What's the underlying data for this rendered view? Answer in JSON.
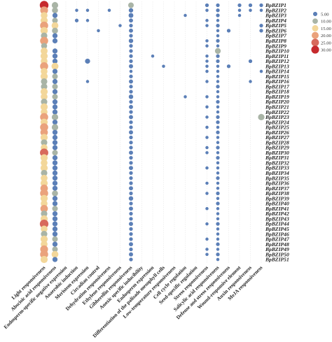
{
  "chart_data": {
    "type": "scatter",
    "title": "",
    "xlabel": "",
    "ylabel": "",
    "x_categories": [
      "Light responsiveness",
      "Abscisic acid responsiveness",
      "Endosperm-specific negative expression",
      "Anaerobic induction",
      "Meristem expression",
      "Circadian control",
      "Dehydration responsiveness",
      "Ethylene responsiveness",
      "Gibberellin responsiveness",
      "Anoxic specific inducibility",
      "Endosperm expression",
      "Differentiation of the palisade mesophyll cells",
      "Low-temperature responsiveness",
      "Cell cycle regulation",
      "Seed-specific regulation",
      "Stress responsiveness",
      "Salicylic acid responsiveness",
      "Defense and stress responsiveness",
      "Wound-responsive element",
      "Auxin responsiveness",
      "MeJA responsiveness"
    ],
    "y_categories": [
      "BpBZIP1",
      "BpBZIP2",
      "BpBZIP3",
      "BpBZIP4",
      "BpBZIP5",
      "BpBZIP6",
      "BpBZIP7",
      "BpBZIP8",
      "BpBZIP9",
      "BpBZIP10",
      "BpBZIP11",
      "BpBZIP12",
      "BpBZIP13",
      "BpBZIP14",
      "BpBZIP15",
      "BpBZIP16",
      "BpBZIP17",
      "BpBZIP18",
      "BpBZIP19",
      "BpBZIP20",
      "BpBZIP21",
      "BpBZIP22",
      "BpBZIP23",
      "BpBZIP24",
      "BpBZIP25",
      "BpBZIP26",
      "BpBZIP27",
      "BpBZIP28",
      "BpBZIP29",
      "BpBZIP30",
      "BpBZIP31",
      "BpBZIP32",
      "BpBZIP33",
      "BpBZIP34",
      "BpBZIP35",
      "BpBZIP36",
      "BpBZIP37",
      "BpBZIP38",
      "BpBZIP39",
      "BpBZIP40",
      "BpBZIP41",
      "BpBZIP42",
      "BpBZIP43",
      "BpBZIP44",
      "BpBZIP45",
      "BpBZIP46",
      "BpBZIP47",
      "BpBZIP48",
      "BpBZIP49",
      "BpBZIP50",
      "BpBZIP51"
    ],
    "legend": {
      "placement": "right",
      "values": [
        5,
        10,
        15,
        20,
        25,
        30
      ],
      "labels": [
        "5.00",
        "10.00",
        "15.00",
        "20.00",
        "25.00",
        "30.00"
      ],
      "colors": [
        "#5b7fb7",
        "#a9b4a6",
        "#f3d79a",
        "#eaa27c",
        "#d86a5c",
        "#c62a2d"
      ]
    },
    "values": [
      [
        30,
        12,
        0,
        0,
        0,
        0,
        0,
        0,
        8,
        0,
        0,
        0,
        0,
        0,
        0,
        2,
        2,
        0,
        2,
        2,
        2
      ],
      [
        20,
        10,
        0,
        1,
        1,
        0,
        1,
        0,
        4,
        0,
        0,
        0,
        0,
        0,
        0,
        1,
        2,
        0,
        1,
        1,
        1
      ],
      [
        14,
        6,
        0,
        0,
        0,
        0,
        0,
        0,
        5,
        0,
        0,
        0,
        0,
        1,
        0,
        0,
        2,
        0,
        1,
        0,
        0
      ],
      [
        16,
        8,
        0,
        2,
        1,
        0,
        0,
        0,
        3,
        0,
        0,
        0,
        0,
        0,
        0,
        1,
        1,
        0,
        0,
        0,
        0
      ],
      [
        22,
        14,
        0,
        0,
        0,
        0,
        0,
        1,
        2,
        0,
        0,
        0,
        0,
        0,
        0,
        1,
        2,
        0,
        0,
        0,
        2
      ],
      [
        17,
        10,
        0,
        0,
        0,
        1,
        0,
        0,
        3,
        0,
        0,
        0,
        0,
        0,
        0,
        0,
        1,
        2,
        0,
        0,
        2
      ],
      [
        12,
        6,
        0,
        0,
        0,
        0,
        0,
        0,
        2,
        0,
        0,
        0,
        0,
        0,
        0,
        0,
        1,
        0,
        0,
        0,
        0
      ],
      [
        22,
        6,
        0,
        0,
        0,
        0,
        0,
        0,
        4,
        0,
        0,
        0,
        0,
        0,
        0,
        1,
        2,
        0,
        0,
        0,
        0
      ],
      [
        10,
        0,
        0,
        0,
        0,
        0,
        0,
        0,
        2,
        0,
        0,
        0,
        0,
        0,
        0,
        1,
        1,
        0,
        0,
        0,
        0
      ],
      [
        15,
        6,
        0,
        0,
        0,
        0,
        0,
        0,
        2,
        0,
        0,
        0,
        0,
        0,
        0,
        0,
        9,
        0,
        0,
        0,
        0
      ],
      [
        16,
        6,
        0,
        0,
        0,
        0,
        0,
        0,
        2,
        0,
        1,
        0,
        0,
        0,
        0,
        1,
        2,
        0,
        0,
        0,
        0
      ],
      [
        14,
        6,
        0,
        0,
        6,
        0,
        0,
        0,
        2,
        0,
        0,
        0,
        0,
        0,
        0,
        1,
        2,
        0,
        0,
        2,
        0
      ],
      [
        22,
        15,
        0,
        0,
        0,
        0,
        0,
        0,
        3,
        0,
        0,
        1,
        0,
        0,
        0,
        1,
        1,
        2,
        0,
        0,
        0
      ],
      [
        14,
        6,
        0,
        0,
        0,
        0,
        0,
        0,
        1,
        0,
        0,
        0,
        0,
        0,
        0,
        1,
        1,
        0,
        0,
        0,
        1
      ],
      [
        16,
        8,
        0,
        0,
        0,
        0,
        0,
        0,
        2,
        0,
        0,
        0,
        0,
        0,
        0,
        0,
        1,
        0,
        0,
        0,
        0
      ],
      [
        12,
        6,
        0,
        0,
        1,
        0,
        0,
        0,
        3,
        0,
        0,
        0,
        0,
        0,
        0,
        1,
        1,
        0,
        0,
        1,
        0
      ],
      [
        12,
        8,
        0,
        0,
        0,
        0,
        0,
        0,
        2,
        0,
        0,
        0,
        0,
        0,
        0,
        0,
        2,
        0,
        0,
        0,
        0
      ],
      [
        16,
        6,
        0,
        0,
        0,
        0,
        0,
        0,
        2,
        0,
        0,
        0,
        0,
        0,
        0,
        0,
        1,
        0,
        0,
        0,
        0
      ],
      [
        14,
        8,
        0,
        0,
        0,
        0,
        0,
        0,
        4,
        0,
        0,
        0,
        0,
        1,
        0,
        1,
        1,
        0,
        0,
        0,
        0
      ],
      [
        12,
        6,
        0,
        0,
        0,
        0,
        0,
        0,
        2,
        0,
        0,
        0,
        0,
        0,
        0,
        0,
        2,
        0,
        0,
        0,
        0
      ],
      [
        16,
        6,
        0,
        0,
        0,
        0,
        0,
        0,
        3,
        0,
        0,
        0,
        0,
        0,
        0,
        1,
        1,
        0,
        0,
        0,
        0
      ],
      [
        14,
        6,
        0,
        0,
        0,
        0,
        0,
        0,
        2,
        0,
        0,
        0,
        0,
        0,
        0,
        0,
        1,
        0,
        0,
        0,
        0
      ],
      [
        22,
        12,
        0,
        0,
        0,
        0,
        0,
        0,
        3,
        0,
        0,
        0,
        0,
        0,
        0,
        1,
        2,
        0,
        0,
        0,
        12
      ],
      [
        16,
        6,
        0,
        0,
        0,
        0,
        0,
        0,
        2,
        0,
        0,
        0,
        0,
        0,
        0,
        0,
        2,
        0,
        0,
        0,
        0
      ],
      [
        22,
        12,
        0,
        0,
        0,
        0,
        0,
        0,
        2,
        0,
        0,
        0,
        0,
        0,
        0,
        1,
        1,
        0,
        0,
        0,
        0
      ],
      [
        18,
        6,
        0,
        0,
        0,
        0,
        0,
        0,
        3,
        0,
        0,
        0,
        0,
        0,
        0,
        0,
        2,
        0,
        0,
        0,
        0
      ],
      [
        16,
        6,
        0,
        0,
        0,
        0,
        0,
        0,
        2,
        0,
        0,
        0,
        0,
        0,
        0,
        1,
        1,
        0,
        0,
        0,
        0
      ],
      [
        12,
        6,
        0,
        0,
        0,
        0,
        0,
        0,
        2,
        0,
        0,
        0,
        0,
        0,
        0,
        0,
        1,
        0,
        0,
        0,
        0
      ],
      [
        14,
        6,
        0,
        0,
        0,
        0,
        0,
        0,
        2,
        0,
        0,
        0,
        0,
        0,
        0,
        1,
        2,
        0,
        0,
        0,
        0
      ],
      [
        24,
        8,
        0,
        0,
        0,
        0,
        0,
        0,
        3,
        0,
        0,
        0,
        0,
        0,
        0,
        1,
        1,
        0,
        0,
        0,
        0
      ],
      [
        16,
        6,
        0,
        0,
        0,
        0,
        0,
        0,
        2,
        0,
        0,
        0,
        0,
        0,
        0,
        0,
        2,
        0,
        0,
        0,
        0
      ],
      [
        14,
        6,
        0,
        0,
        0,
        0,
        0,
        0,
        2,
        0,
        0,
        0,
        0,
        0,
        0,
        0,
        1,
        0,
        0,
        0,
        0
      ],
      [
        16,
        6,
        0,
        0,
        0,
        0,
        0,
        0,
        3,
        0,
        0,
        0,
        0,
        0,
        0,
        1,
        1,
        0,
        0,
        0,
        0
      ],
      [
        12,
        6,
        0,
        0,
        0,
        0,
        0,
        0,
        2,
        0,
        0,
        0,
        0,
        0,
        0,
        0,
        1,
        0,
        0,
        0,
        0
      ],
      [
        14,
        6,
        0,
        0,
        0,
        0,
        0,
        0,
        2,
        0,
        0,
        0,
        0,
        0,
        0,
        0,
        2,
        0,
        0,
        0,
        0
      ],
      [
        16,
        6,
        0,
        0,
        0,
        0,
        0,
        0,
        2,
        0,
        0,
        0,
        0,
        0,
        0,
        1,
        1,
        0,
        0,
        0,
        0
      ],
      [
        18,
        6,
        0,
        0,
        0,
        0,
        0,
        0,
        3,
        0,
        0,
        0,
        0,
        0,
        0,
        0,
        1,
        0,
        0,
        0,
        0
      ],
      [
        22,
        10,
        0,
        0,
        0,
        0,
        0,
        0,
        2,
        0,
        0,
        0,
        0,
        0,
        0,
        1,
        2,
        0,
        0,
        0,
        0
      ],
      [
        16,
        6,
        0,
        0,
        0,
        0,
        0,
        0,
        4,
        0,
        0,
        0,
        0,
        0,
        0,
        0,
        1,
        0,
        0,
        0,
        0
      ],
      [
        14,
        6,
        0,
        0,
        0,
        0,
        0,
        0,
        2,
        0,
        0,
        0,
        0,
        0,
        0,
        0,
        2,
        0,
        0,
        0,
        0
      ],
      [
        18,
        8,
        0,
        0,
        0,
        0,
        0,
        0,
        3,
        0,
        0,
        0,
        0,
        0,
        0,
        1,
        1,
        0,
        0,
        0,
        0
      ],
      [
        12,
        6,
        0,
        0,
        0,
        0,
        0,
        0,
        2,
        0,
        0,
        0,
        0,
        0,
        0,
        0,
        1,
        0,
        0,
        0,
        0
      ],
      [
        16,
        6,
        0,
        0,
        0,
        0,
        0,
        0,
        2,
        0,
        0,
        0,
        0,
        0,
        0,
        0,
        1,
        0,
        0,
        0,
        0
      ],
      [
        26,
        6,
        0,
        0,
        0,
        0,
        0,
        0,
        3,
        0,
        0,
        0,
        0,
        0,
        0,
        1,
        2,
        0,
        0,
        0,
        0
      ],
      [
        14,
        6,
        0,
        0,
        0,
        0,
        0,
        0,
        2,
        0,
        0,
        0,
        0,
        0,
        0,
        0,
        1,
        0,
        0,
        0,
        0
      ],
      [
        12,
        6,
        0,
        0,
        0,
        0,
        0,
        0,
        2,
        0,
        0,
        0,
        0,
        0,
        0,
        0,
        1,
        0,
        0,
        0,
        0
      ],
      [
        16,
        8,
        0,
        0,
        0,
        0,
        0,
        0,
        2,
        0,
        0,
        0,
        0,
        0,
        0,
        1,
        1,
        0,
        0,
        0,
        0
      ],
      [
        14,
        6,
        0,
        0,
        0,
        0,
        0,
        0,
        3,
        0,
        0,
        0,
        0,
        0,
        0,
        0,
        2,
        0,
        0,
        0,
        0
      ],
      [
        20,
        8,
        0,
        0,
        0,
        0,
        0,
        0,
        2,
        0,
        0,
        0,
        0,
        0,
        0,
        1,
        1,
        0,
        0,
        0,
        0
      ],
      [
        22,
        14,
        0,
        0,
        0,
        0,
        0,
        0,
        3,
        0,
        0,
        0,
        0,
        0,
        0,
        1,
        2,
        0,
        0,
        0,
        0
      ],
      [
        16,
        6,
        0,
        0,
        0,
        0,
        0,
        0,
        2,
        0,
        0,
        0,
        0,
        0,
        0,
        0,
        1,
        0,
        0,
        0,
        0
      ]
    ]
  }
}
